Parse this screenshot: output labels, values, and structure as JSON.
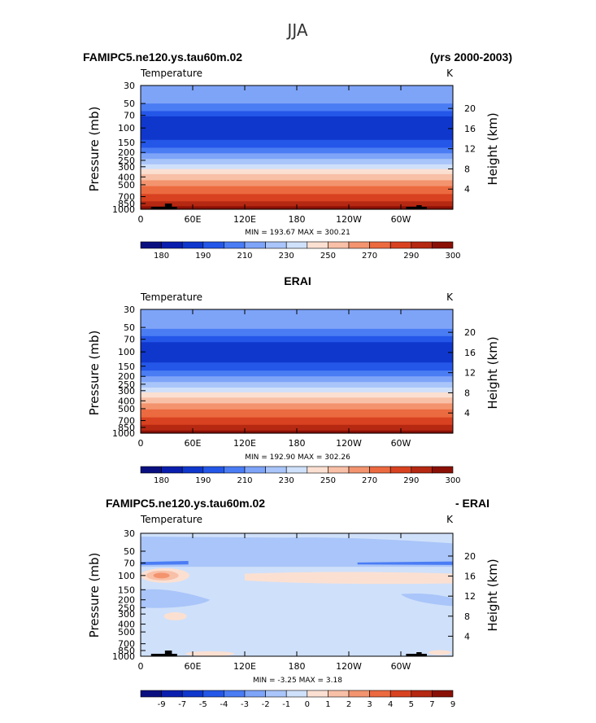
{
  "page_title": "JJA",
  "colorbar_main": {
    "colors": [
      "#0a0f80",
      "#0a1eae",
      "#0f37cc",
      "#2457e8",
      "#4a7cf4",
      "#7ea4f8",
      "#a9c5f9",
      "#cfe0fa",
      "#fbe0d2",
      "#f8c0a7",
      "#f3946f",
      "#ec6a40",
      "#d84220",
      "#b52812",
      "#8a1006"
    ],
    "labels": [
      "180",
      "190",
      "210",
      "230",
      "250",
      "270",
      "290",
      "300"
    ]
  },
  "colorbar_diff": {
    "colors": [
      "#0a0f80",
      "#0a1eae",
      "#0f37cc",
      "#2457e8",
      "#4a7cf4",
      "#7ea4f8",
      "#a9c5f9",
      "#cfe0fa",
      "#fbe0d2",
      "#f8c0a7",
      "#f3946f",
      "#ec6a40",
      "#d84220",
      "#b52812",
      "#8a1006"
    ],
    "labels": [
      "-9",
      "-7",
      "-5",
      "-4",
      "-3",
      "-2",
      "-1",
      "0",
      "1",
      "2",
      "3",
      "4",
      "5",
      "7",
      "9"
    ]
  },
  "chart_data": [
    {
      "type": "heatmap",
      "title_left": "FAMIPC5.ne120.ys.tau60m.02",
      "title_right": "(yrs 2000-2003)",
      "variable": "Temperature",
      "units": "K",
      "ylabel": "Pressure (mb)",
      "ylabel_right": "Height (km)",
      "x_ticks": [
        "0",
        "60E",
        "120E",
        "180",
        "120W",
        "60W"
      ],
      "y_ticks": [
        "30",
        "50",
        "70",
        "100",
        "150",
        "200",
        "250",
        "300",
        "400",
        "500",
        "700",
        "850",
        "1000"
      ],
      "y_ticks_right": [
        "20",
        "16",
        "12",
        "8",
        "4"
      ],
      "y_scale": "log",
      "stats": "MIN = 193.67   MAX = 300.21",
      "min": 193.67,
      "max": 300.21
    },
    {
      "type": "heatmap",
      "title": "ERAI",
      "variable": "Temperature",
      "units": "K",
      "ylabel": "Pressure (mb)",
      "ylabel_right": "Height (km)",
      "x_ticks": [
        "0",
        "60E",
        "120E",
        "180",
        "120W",
        "60W"
      ],
      "y_ticks": [
        "30",
        "50",
        "70",
        "100",
        "150",
        "200",
        "250",
        "300",
        "400",
        "500",
        "700",
        "850",
        "1000"
      ],
      "y_ticks_right": [
        "20",
        "16",
        "12",
        "8",
        "4"
      ],
      "y_scale": "log",
      "stats": "MIN = 192.90   MAX = 302.26",
      "min": 192.9,
      "max": 302.26
    },
    {
      "type": "heatmap",
      "title_left": "FAMIPC5.ne120.ys.tau60m.02",
      "title_right": "- ERAI",
      "variable": "Temperature",
      "units": "K",
      "ylabel": "Pressure (mb)",
      "ylabel_right": "Height (km)",
      "x_ticks": [
        "0",
        "60E",
        "120E",
        "180",
        "120W",
        "60W"
      ],
      "y_ticks": [
        "30",
        "50",
        "70",
        "100",
        "150",
        "200",
        "250",
        "300",
        "400",
        "500",
        "700",
        "850",
        "1000"
      ],
      "y_ticks_right": [
        "20",
        "16",
        "12",
        "8",
        "4"
      ],
      "y_scale": "log",
      "stats": "MIN =   -3.25   MAX =    3.18",
      "min": -3.25,
      "max": 3.18
    }
  ]
}
